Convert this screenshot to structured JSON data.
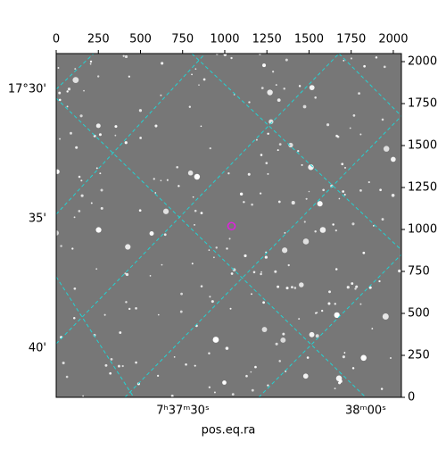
{
  "chart_data": {
    "type": "image",
    "xlabel": "pos.eq.ra",
    "xlim": [
      0,
      2048
    ],
    "ylim": [
      0,
      2048
    ],
    "xticks": [
      0,
      250,
      500,
      750,
      1000,
      1250,
      1500,
      1750,
      2000
    ],
    "yticks": [
      0,
      250,
      500,
      750,
      1000,
      1250,
      1500,
      1750,
      2000
    ],
    "ra_labels": [
      "7ʰ37ᵐ30ˢ",
      "38ᵐ00ˢ"
    ],
    "dec_labels": [
      "17°30'",
      "35'",
      "40'"
    ],
    "marker": {
      "x": 1040,
      "y": 1020,
      "color": "#e020e0"
    },
    "grid_color": "#22d3d3"
  }
}
